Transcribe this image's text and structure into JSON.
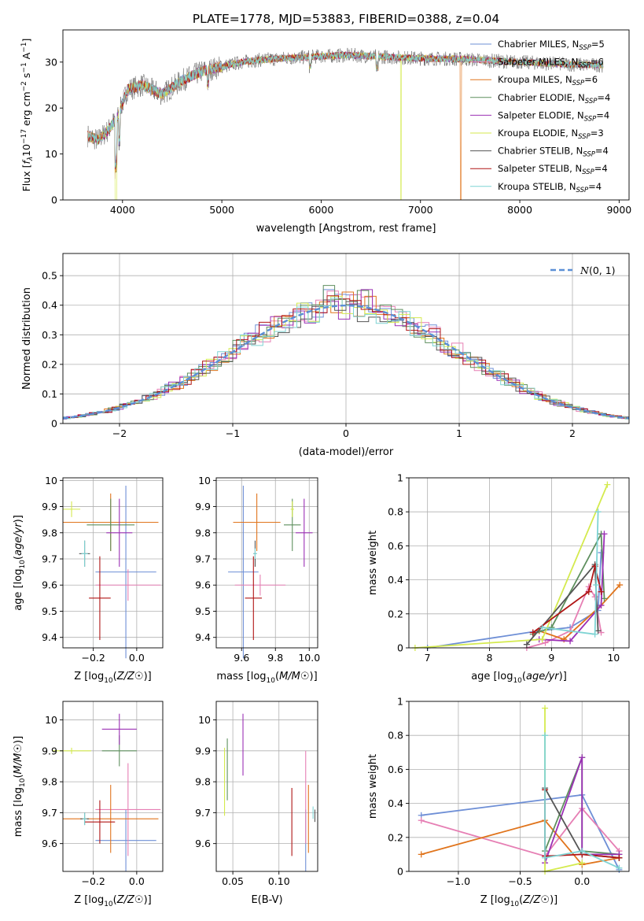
{
  "figure": {
    "title": "PLATE=1778, MJD=53883, FIBERID=0388, z=0.04"
  },
  "series": [
    {
      "label": "Chabrier MILES, N<sub>SSP</sub>=5",
      "text": "Chabrier MILES, N",
      "sub": "SSP",
      "tail": "=5",
      "color": "#6e8fd6"
    },
    {
      "label": "Salpeter MILES, N<sub>SSP</sub>=6",
      "text": "Salpeter MILES, N",
      "sub": "SSP",
      "tail": "=6",
      "color": "#e67fb4"
    },
    {
      "label": "Kroupa MILES, N<sub>SSP</sub>=6",
      "text": "Kroupa MILES, N",
      "sub": "SSP",
      "tail": "=6",
      "color": "#e0741c"
    },
    {
      "label": "Chabrier ELODIE, N<sub>SSP</sub>=4",
      "text": "Chabrier ELODIE, N",
      "sub": "SSP",
      "tail": "=4",
      "color": "#5e8f5e"
    },
    {
      "label": "Salpeter ELODIE, N<sub>SSP</sub>=4",
      "text": "Salpeter ELODIE, N",
      "sub": "SSP",
      "tail": "=4",
      "color": "#9b30b5"
    },
    {
      "label": "Kroupa ELODIE, N<sub>SSP</sub>=3",
      "text": "Kroupa ELODIE, N",
      "sub": "SSP",
      "tail": "=3",
      "color": "#d4ea4e"
    },
    {
      "label": "Chabrier STELIB, N<sub>SSP</sub>=4",
      "text": "Chabrier STELIB, N",
      "sub": "SSP",
      "tail": "=4",
      "color": "#555555"
    },
    {
      "label": "Salpeter STELIB, N<sub>SSP</sub>=4",
      "text": "Salpeter STELIB, N",
      "sub": "SSP",
      "tail": "=4",
      "color": "#b01515"
    },
    {
      "label": "Kroupa STELIB, N<sub>SSP</sub>=4",
      "text": "Kroupa STELIB, N",
      "sub": "SSP",
      "tail": "=4",
      "color": "#7fd4d4"
    }
  ],
  "chart_data": [
    {
      "id": "spectrum",
      "type": "line",
      "xlabel": "wavelength [Angstrom, rest frame]",
      "ylabel": "Flux [f_λ 10^-17 erg cm^-2 s^-1 A^-1]",
      "xlim": [
        3400,
        9100
      ],
      "ylim": [
        0,
        37
      ],
      "xticks": [
        4000,
        5000,
        6000,
        7000,
        8000,
        9000
      ],
      "yticks": [
        0,
        10,
        20,
        30
      ],
      "legend": "right",
      "continuum": {
        "x": [
          3650,
          3750,
          3850,
          3950,
          4050,
          4200,
          4400,
          4600,
          4800,
          5000,
          5200,
          5400,
          5600,
          5800,
          6000,
          6300,
          6600,
          7000,
          7400,
          7800,
          8200,
          8500,
          8840
        ],
        "y": [
          14,
          13,
          15,
          18,
          24,
          25,
          23,
          26,
          28,
          29,
          30,
          30.5,
          30.8,
          31,
          31.3,
          31.5,
          31.2,
          30.8,
          30.7,
          30.2,
          29.8,
          29.5,
          29.3
        ]
      },
      "drop_features": [
        {
          "series": "Kroupa ELODIE, N<sub>SSP</sub>=3",
          "x_from": 6800
        },
        {
          "series": "Kroupa MILES, N<sub>SSP</sub>=6",
          "x_from": 7400
        },
        {
          "series": "Kroupa ELODIE, N<sub>SSP</sub>=3",
          "x_at": 3930
        }
      ]
    },
    {
      "id": "residuals",
      "type": "histogram",
      "xlabel": "(data-model)/error",
      "ylabel": "Normed distribution",
      "xlim": [
        -2.5,
        2.5
      ],
      "ylim": [
        0,
        0.575
      ],
      "xticks": [
        -2,
        -1,
        0,
        1,
        2
      ],
      "xticklabels": [
        "−2",
        "−1",
        "0",
        "1",
        "2"
      ],
      "yticks": [
        0.0,
        0.1,
        0.2,
        0.3,
        0.4,
        0.5
      ],
      "legend": "top-right",
      "reference_curve": {
        "label": "N(0,1)",
        "mean": 0,
        "sigma": 1,
        "color": "#5b8fd6"
      },
      "bin_width": 0.1
    },
    {
      "id": "age_vs_Z",
      "type": "errorbar",
      "xlabel": "Z [log10(Z/Z☉)]",
      "ylabel": "age  [log10(age/yr)]",
      "xlim": [
        -0.34,
        0.12
      ],
      "ylim": [
        9.36,
        10.01
      ],
      "xticks": [
        -0.2,
        0.0
      ],
      "xticklabels": [
        "−0.2",
        "0.0"
      ],
      "yticks": [
        9.4,
        9.5,
        9.6,
        9.7,
        9.8,
        9.9,
        10.0
      ],
      "points": [
        {
          "x": -0.05,
          "xerr": 0.14,
          "y": 9.65,
          "yerr": 0.33,
          "series": 0
        },
        {
          "x": -0.04,
          "xerr": 0.15,
          "y": 9.6,
          "yerr": 0.06,
          "series": 1
        },
        {
          "x": -0.12,
          "xerr": 0.22,
          "y": 9.84,
          "yerr": 0.11,
          "series": 2
        },
        {
          "x": -0.12,
          "xerr": 0.11,
          "y": 9.83,
          "yerr": 0.1,
          "series": 3
        },
        {
          "x": -0.08,
          "xerr": 0.06,
          "y": 9.8,
          "yerr": 0.13,
          "series": 4
        },
        {
          "x": -0.3,
          "xerr": 0.04,
          "y": 9.89,
          "yerr": 0.03,
          "series": 5
        },
        {
          "x": -0.24,
          "xerr": 0.025,
          "y": 9.72,
          "yerr": 0.05,
          "series": 6
        },
        {
          "x": -0.17,
          "xerr": 0.05,
          "y": 9.55,
          "yerr": 0.16,
          "series": 7
        },
        {
          "x": -0.24,
          "xerr": 0.015,
          "y": 9.72,
          "yerr": 0.05,
          "series": 8
        }
      ]
    },
    {
      "id": "age_vs_mass",
      "type": "errorbar",
      "xlabel": "mass [log10(M/M☉)]",
      "ylabel": "",
      "xlim": [
        9.45,
        10.05
      ],
      "ylim": [
        9.36,
        10.01
      ],
      "xticks": [
        9.6,
        9.8,
        10.0
      ],
      "xticklabels": [
        "9.6",
        "9.8",
        "10.0"
      ],
      "yticks": [
        9.4,
        9.5,
        9.6,
        9.7,
        9.8,
        9.9,
        10.0
      ],
      "points": [
        {
          "x": 9.61,
          "xerr": 0.09,
          "y": 9.65,
          "yerr": 0.33,
          "series": 0
        },
        {
          "x": 9.71,
          "xerr": 0.15,
          "y": 9.6,
          "yerr": 0.04,
          "series": 1
        },
        {
          "x": 9.69,
          "xerr": 0.14,
          "y": 9.84,
          "yerr": 0.11,
          "series": 2
        },
        {
          "x": 9.9,
          "xerr": 0.05,
          "y": 9.83,
          "yerr": 0.1,
          "series": 3
        },
        {
          "x": 9.97,
          "xerr": 0.05,
          "y": 9.8,
          "yerr": 0.13,
          "series": 4
        },
        {
          "x": 9.9,
          "xerr": 0.01,
          "y": 9.89,
          "yerr": 0.03,
          "series": 5
        },
        {
          "x": 9.68,
          "xerr": 0.01,
          "y": 9.72,
          "yerr": 0.05,
          "series": 6
        },
        {
          "x": 9.67,
          "xerr": 0.05,
          "y": 9.55,
          "yerr": 0.16,
          "series": 7
        },
        {
          "x": 9.68,
          "xerr": 0.01,
          "y": 9.72,
          "yerr": 0.02,
          "series": 8
        }
      ]
    },
    {
      "id": "massweight_vs_age",
      "type": "line",
      "xlabel": "age  [log10(age/yr)]",
      "ylabel": "mass weight",
      "xlim": [
        6.7,
        10.25
      ],
      "ylim": [
        0.0,
        1.0
      ],
      "xticks": [
        7,
        8,
        9,
        10
      ],
      "yticks": [
        0.0,
        0.2,
        0.4,
        0.6,
        0.8,
        1.0
      ],
      "lines": [
        {
          "series": 0,
          "x": [
            7.0,
            8.8,
            9.3,
            9.75,
            9.8
          ],
          "y": [
            0.0,
            0.1,
            0.12,
            0.22,
            0.56
          ]
        },
        {
          "series": 1,
          "x": [
            8.6,
            8.9,
            9.3,
            9.6,
            9.7,
            9.8
          ],
          "y": [
            0.0,
            0.03,
            0.1,
            0.36,
            0.3,
            0.09
          ]
        },
        {
          "series": 2,
          "x": [
            8.8,
            9.2,
            9.8,
            10.1
          ],
          "y": [
            0.1,
            0.05,
            0.25,
            0.37
          ]
        },
        {
          "series": 3,
          "x": [
            8.7,
            9.0,
            9.8,
            9.85
          ],
          "y": [
            0.08,
            0.12,
            0.67,
            0.29
          ]
        },
        {
          "series": 4,
          "x": [
            8.8,
            9.3,
            9.8,
            9.85
          ],
          "y": [
            0.05,
            0.04,
            0.25,
            0.67
          ]
        },
        {
          "series": 5,
          "x": [
            6.8,
            8.85,
            9.9
          ],
          "y": [
            0.0,
            0.05,
            0.96
          ]
        },
        {
          "series": 6,
          "x": [
            8.6,
            9.7,
            9.75
          ],
          "y": [
            0.02,
            0.49,
            0.1
          ]
        },
        {
          "series": 7,
          "x": [
            8.7,
            9.6,
            9.7,
            9.8
          ],
          "y": [
            0.09,
            0.33,
            0.48,
            0.33
          ]
        },
        {
          "series": 8,
          "x": [
            8.85,
            9.7,
            9.72,
            9.75
          ],
          "y": [
            0.12,
            0.08,
            0.37,
            0.8
          ]
        }
      ]
    },
    {
      "id": "mass_vs_Z",
      "type": "errorbar",
      "xlabel": "Z [log10(Z/Z☉)]",
      "ylabel": "mass [log10(M/M☉)]",
      "xlim": [
        -0.34,
        0.12
      ],
      "ylim": [
        9.51,
        10.06
      ],
      "xticks": [
        -0.2,
        0.0
      ],
      "xticklabels": [
        "−0.2",
        "0.0"
      ],
      "yticks": [
        9.6,
        9.7,
        9.8,
        9.9,
        10.0
      ],
      "points": [
        {
          "x": -0.05,
          "xerr": 0.14,
          "y": 9.61,
          "yerr": 0.1,
          "series": 0
        },
        {
          "x": -0.04,
          "xerr": 0.15,
          "y": 9.71,
          "yerr": 0.15,
          "series": 1
        },
        {
          "x": -0.12,
          "xerr": 0.22,
          "y": 9.68,
          "yerr": 0.11,
          "series": 2
        },
        {
          "x": -0.08,
          "xerr": 0.08,
          "y": 9.9,
          "yerr": 0.05,
          "series": 3
        },
        {
          "x": -0.08,
          "xerr": 0.08,
          "y": 9.97,
          "yerr": 0.05,
          "series": 4
        },
        {
          "x": -0.3,
          "xerr": 0.09,
          "y": 9.9,
          "yerr": 0.01,
          "series": 5
        },
        {
          "x": -0.24,
          "xerr": 0.02,
          "y": 9.68,
          "yerr": 0.02,
          "series": 6
        },
        {
          "x": -0.17,
          "xerr": 0.07,
          "y": 9.67,
          "yerr": 0.07,
          "series": 7
        },
        {
          "x": -0.24,
          "xerr": 0.01,
          "y": 9.68,
          "yerr": 0.02,
          "series": 8
        }
      ]
    },
    {
      "id": "mass_vs_ebv",
      "type": "errorbar",
      "xlabel": "E(B-V)",
      "ylabel": "",
      "xlim": [
        0.032,
        0.142
      ],
      "ylim": [
        9.51,
        10.06
      ],
      "xticks": [
        0.05,
        0.1
      ],
      "xticklabels": [
        "0.05",
        "0.10"
      ],
      "yticks": [
        9.6,
        9.7,
        9.8,
        9.9,
        10.0
      ],
      "points": [
        {
          "x": 0.129,
          "xerr": 0,
          "y": 9.61,
          "yerr": 0.1,
          "series": 0
        },
        {
          "x": 0.129,
          "xerr": 0,
          "y": 9.75,
          "yerr": 0.15,
          "series": 1
        },
        {
          "x": 0.132,
          "xerr": 0,
          "y": 9.68,
          "yerr": 0.11,
          "series": 2
        },
        {
          "x": 0.044,
          "xerr": 0,
          "y": 9.84,
          "yerr": 0.1,
          "series": 3
        },
        {
          "x": 0.061,
          "xerr": 0,
          "y": 9.92,
          "yerr": 0.1,
          "series": 4
        },
        {
          "x": 0.041,
          "xerr": 0,
          "y": 9.8,
          "yerr": 0.11,
          "series": 5
        },
        {
          "x": 0.139,
          "xerr": 0,
          "y": 9.69,
          "yerr": 0.02,
          "series": 6
        },
        {
          "x": 0.114,
          "xerr": 0,
          "y": 9.67,
          "yerr": 0.11,
          "series": 7
        },
        {
          "x": 0.137,
          "xerr": 0,
          "y": 9.7,
          "yerr": 0.02,
          "series": 8
        }
      ]
    },
    {
      "id": "massweight_vs_Z",
      "type": "line",
      "xlabel": "Z [log10(Z/Z☉)]",
      "ylabel": "mass weight",
      "xlim": [
        -1.4,
        0.38
      ],
      "ylim": [
        0.0,
        1.0
      ],
      "xticks": [
        -1.0,
        -0.5,
        0.0
      ],
      "xticklabels": [
        "−1.0",
        "−0.5",
        "0.0"
      ],
      "yticks": [
        0.0,
        0.2,
        0.4,
        0.6,
        0.8,
        1.0
      ],
      "lines": [
        {
          "series": 0,
          "x": [
            -1.3,
            0.0,
            0.3
          ],
          "y": [
            0.33,
            0.45,
            0.01
          ]
        },
        {
          "series": 1,
          "x": [
            -1.3,
            -0.3,
            0.0,
            0.3
          ],
          "y": [
            0.3,
            0.09,
            0.37,
            0.12
          ]
        },
        {
          "series": 2,
          "x": [
            -1.3,
            -0.3,
            0.0,
            0.3
          ],
          "y": [
            0.1,
            0.3,
            0.04,
            0.08
          ]
        },
        {
          "series": 3,
          "x": [
            -0.3,
            0.0,
            0.0,
            0.3
          ],
          "y": [
            0.12,
            0.67,
            0.12,
            0.1
          ]
        },
        {
          "series": 4,
          "x": [
            -0.3,
            0.0,
            0.0,
            0.3
          ],
          "y": [
            0.05,
            0.67,
            0.1,
            0.1
          ]
        },
        {
          "series": 5,
          "x": [
            -0.3,
            -0.3,
            0.0
          ],
          "y": [
            0.96,
            0.0,
            0.05
          ]
        },
        {
          "series": 6,
          "x": [
            -0.3,
            0.0,
            0.3
          ],
          "y": [
            0.49,
            0.1,
            0.08
          ]
        },
        {
          "series": 7,
          "x": [
            -0.3,
            -0.3,
            0.0,
            0.3
          ],
          "y": [
            0.48,
            0.09,
            0.1,
            0.08
          ]
        },
        {
          "series": 8,
          "x": [
            -0.3,
            -0.3,
            0.0,
            0.3
          ],
          "y": [
            0.8,
            0.08,
            0.12,
            0.02
          ]
        }
      ]
    }
  ]
}
